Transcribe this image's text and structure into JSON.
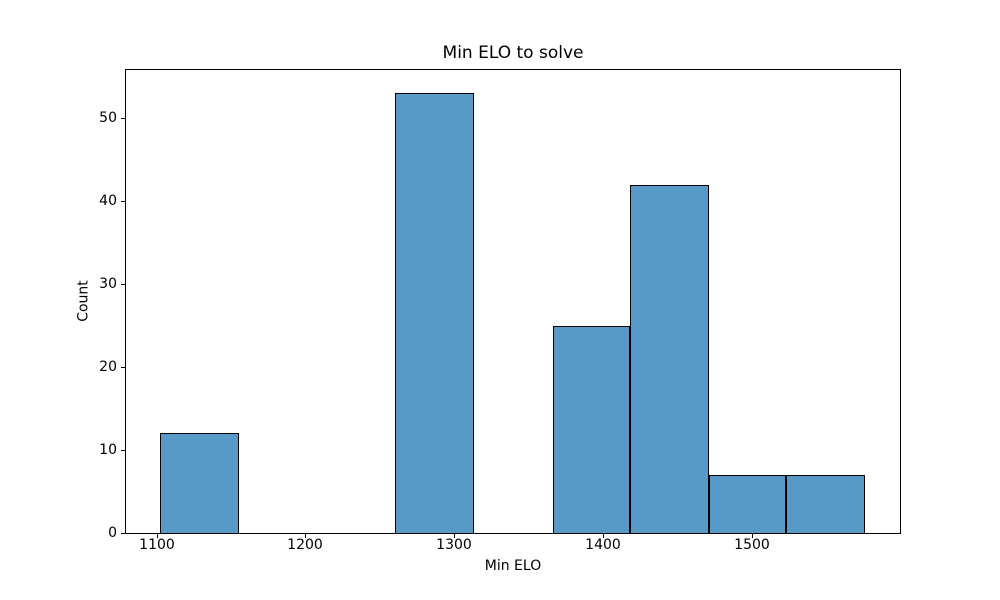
{
  "page": {
    "background": "#ffffff"
  },
  "chart_data": {
    "type": "histogram",
    "title": "Min ELO to solve",
    "xlabel": "Min ELO",
    "ylabel": "Count",
    "bin_edges": [
      1102,
      1155,
      1208,
      1260,
      1313,
      1366,
      1418,
      1471,
      1523,
      1576
    ],
    "counts": [
      12,
      0,
      0,
      53,
      0,
      25,
      42,
      7,
      7
    ],
    "x_ticks": [
      1100,
      1200,
      1300,
      1400,
      1500
    ],
    "y_ticks": [
      0,
      10,
      20,
      30,
      40,
      50
    ],
    "xlim": [
      1079.4,
      1599.5
    ],
    "ylim": [
      0,
      55.8
    ],
    "bar_fill_color": "#5799c7",
    "bar_edge_color": "#000000",
    "axis_color": "#000000",
    "grid": false,
    "legend": "none"
  }
}
